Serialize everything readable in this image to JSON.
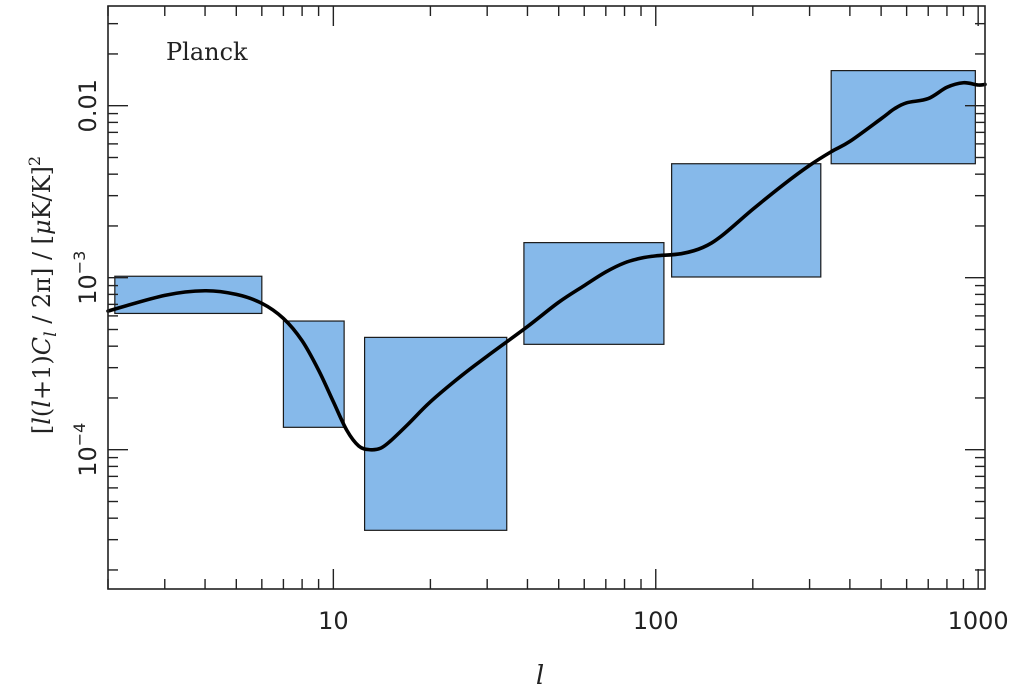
{
  "chart_data": {
    "type": "line",
    "panel_label": "Planck",
    "xlabel": "l",
    "ylabel": "[l(l+1)C_l / 2π] / [μK/K]²",
    "xscale": "log",
    "yscale": "log",
    "xlim": [
      2,
      1050
    ],
    "ylim": [
      1.55e-05,
      0.038
    ],
    "x_ticks": [
      {
        "value": 10,
        "label": "10"
      },
      {
        "value": 100,
        "label": "100"
      },
      {
        "value": 1000,
        "label": "1000"
      }
    ],
    "y_ticks": [
      {
        "value": 0.0001,
        "base": "10",
        "exp": "−4"
      },
      {
        "value": 0.001,
        "base": "10",
        "exp": "−3"
      },
      {
        "value": 0.01,
        "label": "0.01"
      }
    ],
    "grid": false,
    "bins": [
      {
        "l_min": 2.1,
        "l_max": 6.0,
        "y_min": 0.00062,
        "y_max": 0.00102
      },
      {
        "l_min": 7.0,
        "l_max": 10.8,
        "y_min": 0.000135,
        "y_max": 0.00056
      },
      {
        "l_min": 12.5,
        "l_max": 34.5,
        "y_min": 3.4e-05,
        "y_max": 0.00045
      },
      {
        "l_min": 39,
        "l_max": 106,
        "y_min": 0.00041,
        "y_max": 0.0016
      },
      {
        "l_min": 112,
        "l_max": 325,
        "y_min": 0.00101,
        "y_max": 0.0046
      },
      {
        "l_min": 350,
        "l_max": 980,
        "y_min": 0.0046,
        "y_max": 0.016
      }
    ],
    "curve": {
      "x": [
        2,
        3,
        4,
        5,
        6,
        7,
        8,
        9,
        10,
        11,
        12,
        13,
        14,
        15,
        17,
        20,
        25,
        30,
        40,
        50,
        60,
        70,
        80,
        90,
        100,
        120,
        140,
        160,
        200,
        250,
        300,
        350,
        400,
        500,
        550,
        600,
        700,
        800,
        900,
        1000,
        1050
      ],
      "y": [
        0.00064,
        0.00079,
        0.00084,
        0.0008,
        0.00071,
        0.00058,
        0.00043,
        0.00029,
        0.00019,
        0.00013,
        0.000105,
        0.0001,
        0.000102,
        0.000112,
        0.00014,
        0.00019,
        0.00027,
        0.00035,
        0.00052,
        0.00072,
        0.0009,
        0.00108,
        0.00122,
        0.0013,
        0.00134,
        0.00138,
        0.0015,
        0.00175,
        0.0025,
        0.0035,
        0.0045,
        0.0054,
        0.0062,
        0.0084,
        0.0096,
        0.0104,
        0.011,
        0.0128,
        0.0136,
        0.0132,
        0.0133
      ]
    },
    "colors": {
      "bin_fill": "#86b9ea",
      "bin_stroke": "#1a1a1a",
      "curve": "#000000",
      "axes": "#222222"
    }
  }
}
